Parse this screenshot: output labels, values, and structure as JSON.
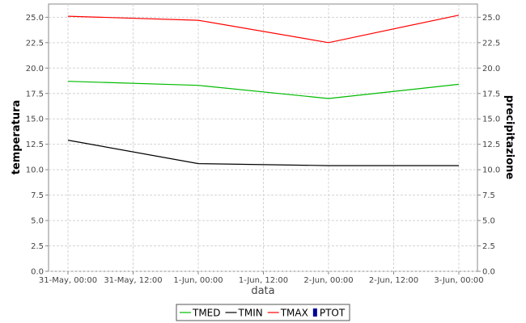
{
  "chart_data": {
    "type": "line",
    "title": "",
    "xlabel": "data",
    "ylabel": "temperatura",
    "y2label": "precipitazione",
    "x_tick_labels": [
      "31-May, 00:00",
      "31-May, 12:00",
      "1-Jun, 00:00",
      "1-Jun, 12:00",
      "2-Jun, 00:00",
      "2-Jun, 12:00",
      "3-Jun, 00:00"
    ],
    "y_ticks": [
      "0.0",
      "2.5",
      "5.0",
      "7.5",
      "10.0",
      "12.5",
      "15.0",
      "17.5",
      "20.0",
      "22.5",
      "25.0"
    ],
    "ylim": [
      0,
      26.3
    ],
    "y2lim": [
      0,
      26.3
    ],
    "x_hours": [
      0,
      24,
      48,
      72
    ],
    "series": [
      {
        "name": "TMED",
        "color": "#00bb00",
        "values": [
          18.7,
          18.3,
          17.0,
          18.4
        ]
      },
      {
        "name": "TMIN",
        "color": "#000000",
        "values": [
          12.9,
          10.6,
          10.4,
          10.4
        ]
      },
      {
        "name": "TMAX",
        "color": "#ff0000",
        "values": [
          25.1,
          24.7,
          22.5,
          25.2
        ]
      }
    ],
    "legend": {
      "placement": "bottom",
      "entries": [
        {
          "name": "TMED",
          "color": "#00bb00",
          "marker": "line"
        },
        {
          "name": "TMIN",
          "color": "#000000",
          "marker": "line"
        },
        {
          "name": "TMAX",
          "color": "#ff0000",
          "marker": "line"
        },
        {
          "name": "PTOT",
          "color": "#000099",
          "marker": "box"
        }
      ]
    },
    "grid": true
  }
}
